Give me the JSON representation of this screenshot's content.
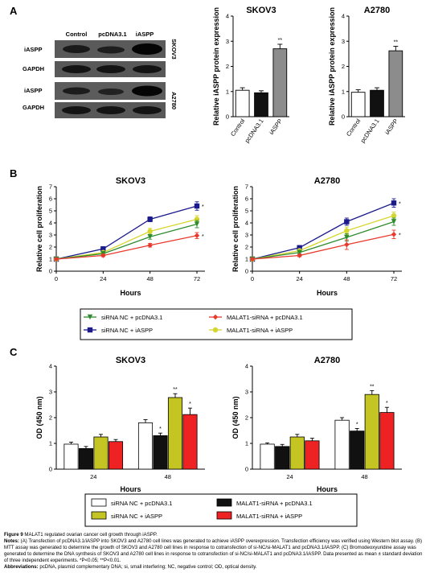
{
  "panels": {
    "a": "A",
    "b": "B",
    "c": "C"
  },
  "blot": {
    "lanes": [
      "Control",
      "pcDNA3.1",
      "iASPP"
    ],
    "rows": [
      "iASPP",
      "GAPDH",
      "iASPP",
      "GAPDH"
    ],
    "cells": [
      "SKOV3",
      "A2780"
    ]
  },
  "colors": {
    "white": "#ffffff",
    "black": "#111111",
    "gray": "#8c8c8c",
    "olive": "#c4c422",
    "red": "#ee2222",
    "green": "#2e8b2e",
    "navy": "#1a1a8c",
    "yellow": "#d6d630",
    "redline": "#e8392d"
  },
  "legend_b": [
    {
      "label": "siRNA NC + pcDNA3.1",
      "marker": "triangle-down-icon",
      "color": "#2e8b2e"
    },
    {
      "label": "MALAT1-siRNA + pcDNA3.1",
      "marker": "diamond-icon",
      "color": "#e8392d"
    },
    {
      "label": "siRNA NC + iASPP",
      "marker": "square-icon",
      "color": "#1a1a8c"
    },
    {
      "label": "MALAT1-siRNA + iASPP",
      "marker": "circle-icon",
      "color": "#d6d630"
    }
  ],
  "legend_c": [
    {
      "label": "siRNA NC + pcDNA3.1",
      "color": "#ffffff"
    },
    {
      "label": "MALAT1-siRNA + pcDNA3.1",
      "color": "#111111"
    },
    {
      "label": "siRNA NC + iASPP",
      "color": "#c4c422"
    },
    {
      "label": "MALAT1-siRNA + iASPP",
      "color": "#ee2222"
    }
  ],
  "chart_data": [
    {
      "type": "bar",
      "panel": "A",
      "title": "SKOV3",
      "ylabel": "Relative iASPP protein expression",
      "xlabel": "",
      "categories": [
        "Control",
        "pcDNA3.1",
        "iASPP"
      ],
      "values": [
        1.05,
        0.95,
        2.7
      ],
      "errors": [
        0.1,
        0.08,
        0.18
      ],
      "colors": [
        "#ffffff",
        "#111111",
        "#8c8c8c"
      ],
      "labels": [
        "",
        "",
        "**"
      ],
      "ylim": [
        0,
        4
      ],
      "yticks": [
        "0",
        "1",
        "2",
        "3",
        "4"
      ],
      "grid": false
    },
    {
      "type": "bar",
      "panel": "A",
      "title": "A2780",
      "ylabel": "Relative iASPP protein expression",
      "xlabel": "",
      "categories": [
        "Control",
        "pcDNA3.1",
        "iASPP"
      ],
      "values": [
        0.97,
        1.05,
        2.62
      ],
      "errors": [
        0.1,
        0.1,
        0.18
      ],
      "colors": [
        "#ffffff",
        "#111111",
        "#8c8c8c"
      ],
      "labels": [
        "",
        "",
        "**"
      ],
      "ylim": [
        0,
        4
      ],
      "yticks": [
        "0",
        "1",
        "2",
        "3",
        "4"
      ],
      "grid": false
    },
    {
      "type": "line",
      "panel": "B",
      "title": "SKOV3",
      "ylabel": "Relative cell proliferation",
      "xlabel": "Hours",
      "x": [
        0,
        24,
        48,
        72
      ],
      "xticks": [
        "0",
        "24",
        "48",
        "72"
      ],
      "ylim": [
        0,
        7
      ],
      "yticks": [
        "0",
        "1",
        "2",
        "3",
        "4",
        "5",
        "6",
        "7"
      ],
      "grid": false,
      "series": [
        {
          "values": [
            1,
            1.85,
            4.3,
            5.4
          ],
          "errors": [
            0.05,
            0.1,
            0.2,
            0.35
          ],
          "color": "#1a1a8c",
          "marker": "square",
          "label": "*"
        },
        {
          "values": [
            1,
            1.55,
            3.3,
            4.3
          ],
          "errors": [
            0.05,
            0.1,
            0.25,
            0.3
          ],
          "color": "#d6d630",
          "marker": "circle",
          "label": ""
        },
        {
          "values": [
            1,
            1.45,
            2.85,
            3.9
          ],
          "errors": [
            0.05,
            0.1,
            0.2,
            0.3
          ],
          "color": "#2e8b2e",
          "marker": "triangle",
          "label": ""
        },
        {
          "values": [
            1,
            1.3,
            2.15,
            2.95
          ],
          "errors": [
            0.05,
            0.1,
            0.15,
            0.25
          ],
          "color": "#e8392d",
          "marker": "diamond",
          "label": "*"
        }
      ]
    },
    {
      "type": "line",
      "panel": "B",
      "title": "A2780",
      "ylabel": "Relative cell proliferation",
      "xlabel": "Hours",
      "x": [
        0,
        24,
        48,
        72
      ],
      "xticks": [
        "0",
        "24",
        "48",
        "72"
      ],
      "ylim": [
        0,
        7
      ],
      "yticks": [
        "0",
        "1",
        "2",
        "3",
        "4",
        "5",
        "6",
        "7"
      ],
      "grid": false,
      "series": [
        {
          "values": [
            1,
            1.95,
            4.1,
            5.65
          ],
          "errors": [
            0.05,
            0.1,
            0.3,
            0.35
          ],
          "color": "#1a1a8c",
          "marker": "square",
          "label": "*"
        },
        {
          "values": [
            1,
            1.7,
            3.35,
            4.6
          ],
          "errors": [
            0.05,
            0.1,
            0.3,
            0.3
          ],
          "color": "#d6d630",
          "marker": "circle",
          "label": ""
        },
        {
          "values": [
            1,
            1.55,
            2.8,
            4.1
          ],
          "errors": [
            0.05,
            0.1,
            0.3,
            0.3
          ],
          "color": "#2e8b2e",
          "marker": "triangle",
          "label": ""
        },
        {
          "values": [
            1,
            1.3,
            2.2,
            3.05
          ],
          "errors": [
            0.05,
            0.1,
            0.4,
            0.35
          ],
          "color": "#e8392d",
          "marker": "diamond",
          "label": "*"
        }
      ]
    },
    {
      "type": "bar",
      "panel": "C",
      "title": "SKOV3",
      "ylabel": "OD (450 nm)",
      "xlabel": "Hours",
      "categories": [
        "24",
        "48"
      ],
      "ylim": [
        0,
        4
      ],
      "yticks": [
        "0",
        "1",
        "2",
        "3",
        "4"
      ],
      "grid": false,
      "series": [
        {
          "values": [
            0.97,
            1.8
          ],
          "errors": [
            0.08,
            0.12
          ],
          "color": "#ffffff",
          "labels": [
            "",
            ""
          ]
        },
        {
          "values": [
            0.8,
            1.3
          ],
          "errors": [
            0.08,
            0.1
          ],
          "color": "#111111",
          "labels": [
            "",
            "*"
          ]
        },
        {
          "values": [
            1.25,
            2.78
          ],
          "errors": [
            0.1,
            0.15
          ],
          "color": "#c4c422",
          "labels": [
            "",
            "**"
          ]
        },
        {
          "values": [
            1.07,
            2.12
          ],
          "errors": [
            0.08,
            0.25
          ],
          "color": "#ee2222",
          "labels": [
            "",
            "*"
          ]
        }
      ]
    },
    {
      "type": "bar",
      "panel": "C",
      "title": "A2780",
      "ylabel": "OD (450 nm)",
      "xlabel": "Hours",
      "categories": [
        "24",
        "48"
      ],
      "ylim": [
        0,
        4
      ],
      "yticks": [
        "0",
        "1",
        "2",
        "3",
        "4"
      ],
      "grid": false,
      "series": [
        {
          "values": [
            0.97,
            1.9
          ],
          "errors": [
            0.05,
            0.1
          ],
          "color": "#ffffff",
          "labels": [
            "",
            ""
          ]
        },
        {
          "values": [
            0.88,
            1.48
          ],
          "errors": [
            0.08,
            0.1
          ],
          "color": "#111111",
          "labels": [
            "",
            "*"
          ]
        },
        {
          "values": [
            1.25,
            2.9
          ],
          "errors": [
            0.1,
            0.15
          ],
          "color": "#c4c422",
          "labels": [
            "",
            "**"
          ]
        },
        {
          "values": [
            1.1,
            2.2
          ],
          "errors": [
            0.1,
            0.2
          ],
          "color": "#ee2222",
          "labels": [
            "",
            "*"
          ]
        }
      ]
    }
  ],
  "caption": {
    "title_label": "Figure 9",
    "title": " MALAT1 regulated ovarian cancer cell growth through iASPP.",
    "notes_label": "Notes:",
    "notes": " (A) Transfection of pcDNA3.1/iASPP into SKOV3 and A2780 cell lines was generated to achieve iASPP overexpression. Transfection efficiency was verified using Western blot assay. (B) MTT assay was generated to determine the growth of SKOV3 and A2780 cell lines in response to cotransfection of si-NC/si-MALAT1 and pcDNA3.1/iASPP. (C) Bromodeoxyuridine assay was generated to determine the DNA synthesis of SKOV3 and A2780 cell lines in response to cotransfection of si-NC/si-MALAT1 and pcDNA3.1/iASPP. Data presented as mean ± standard deviation of three independent experiments. *P<0.05; **P<0.01.",
    "abbr_label": "Abbreviations:",
    "abbr": " pcDNA, plasmid complementary DNA; si, small interfering; NC, negative control; OD, optical density."
  }
}
